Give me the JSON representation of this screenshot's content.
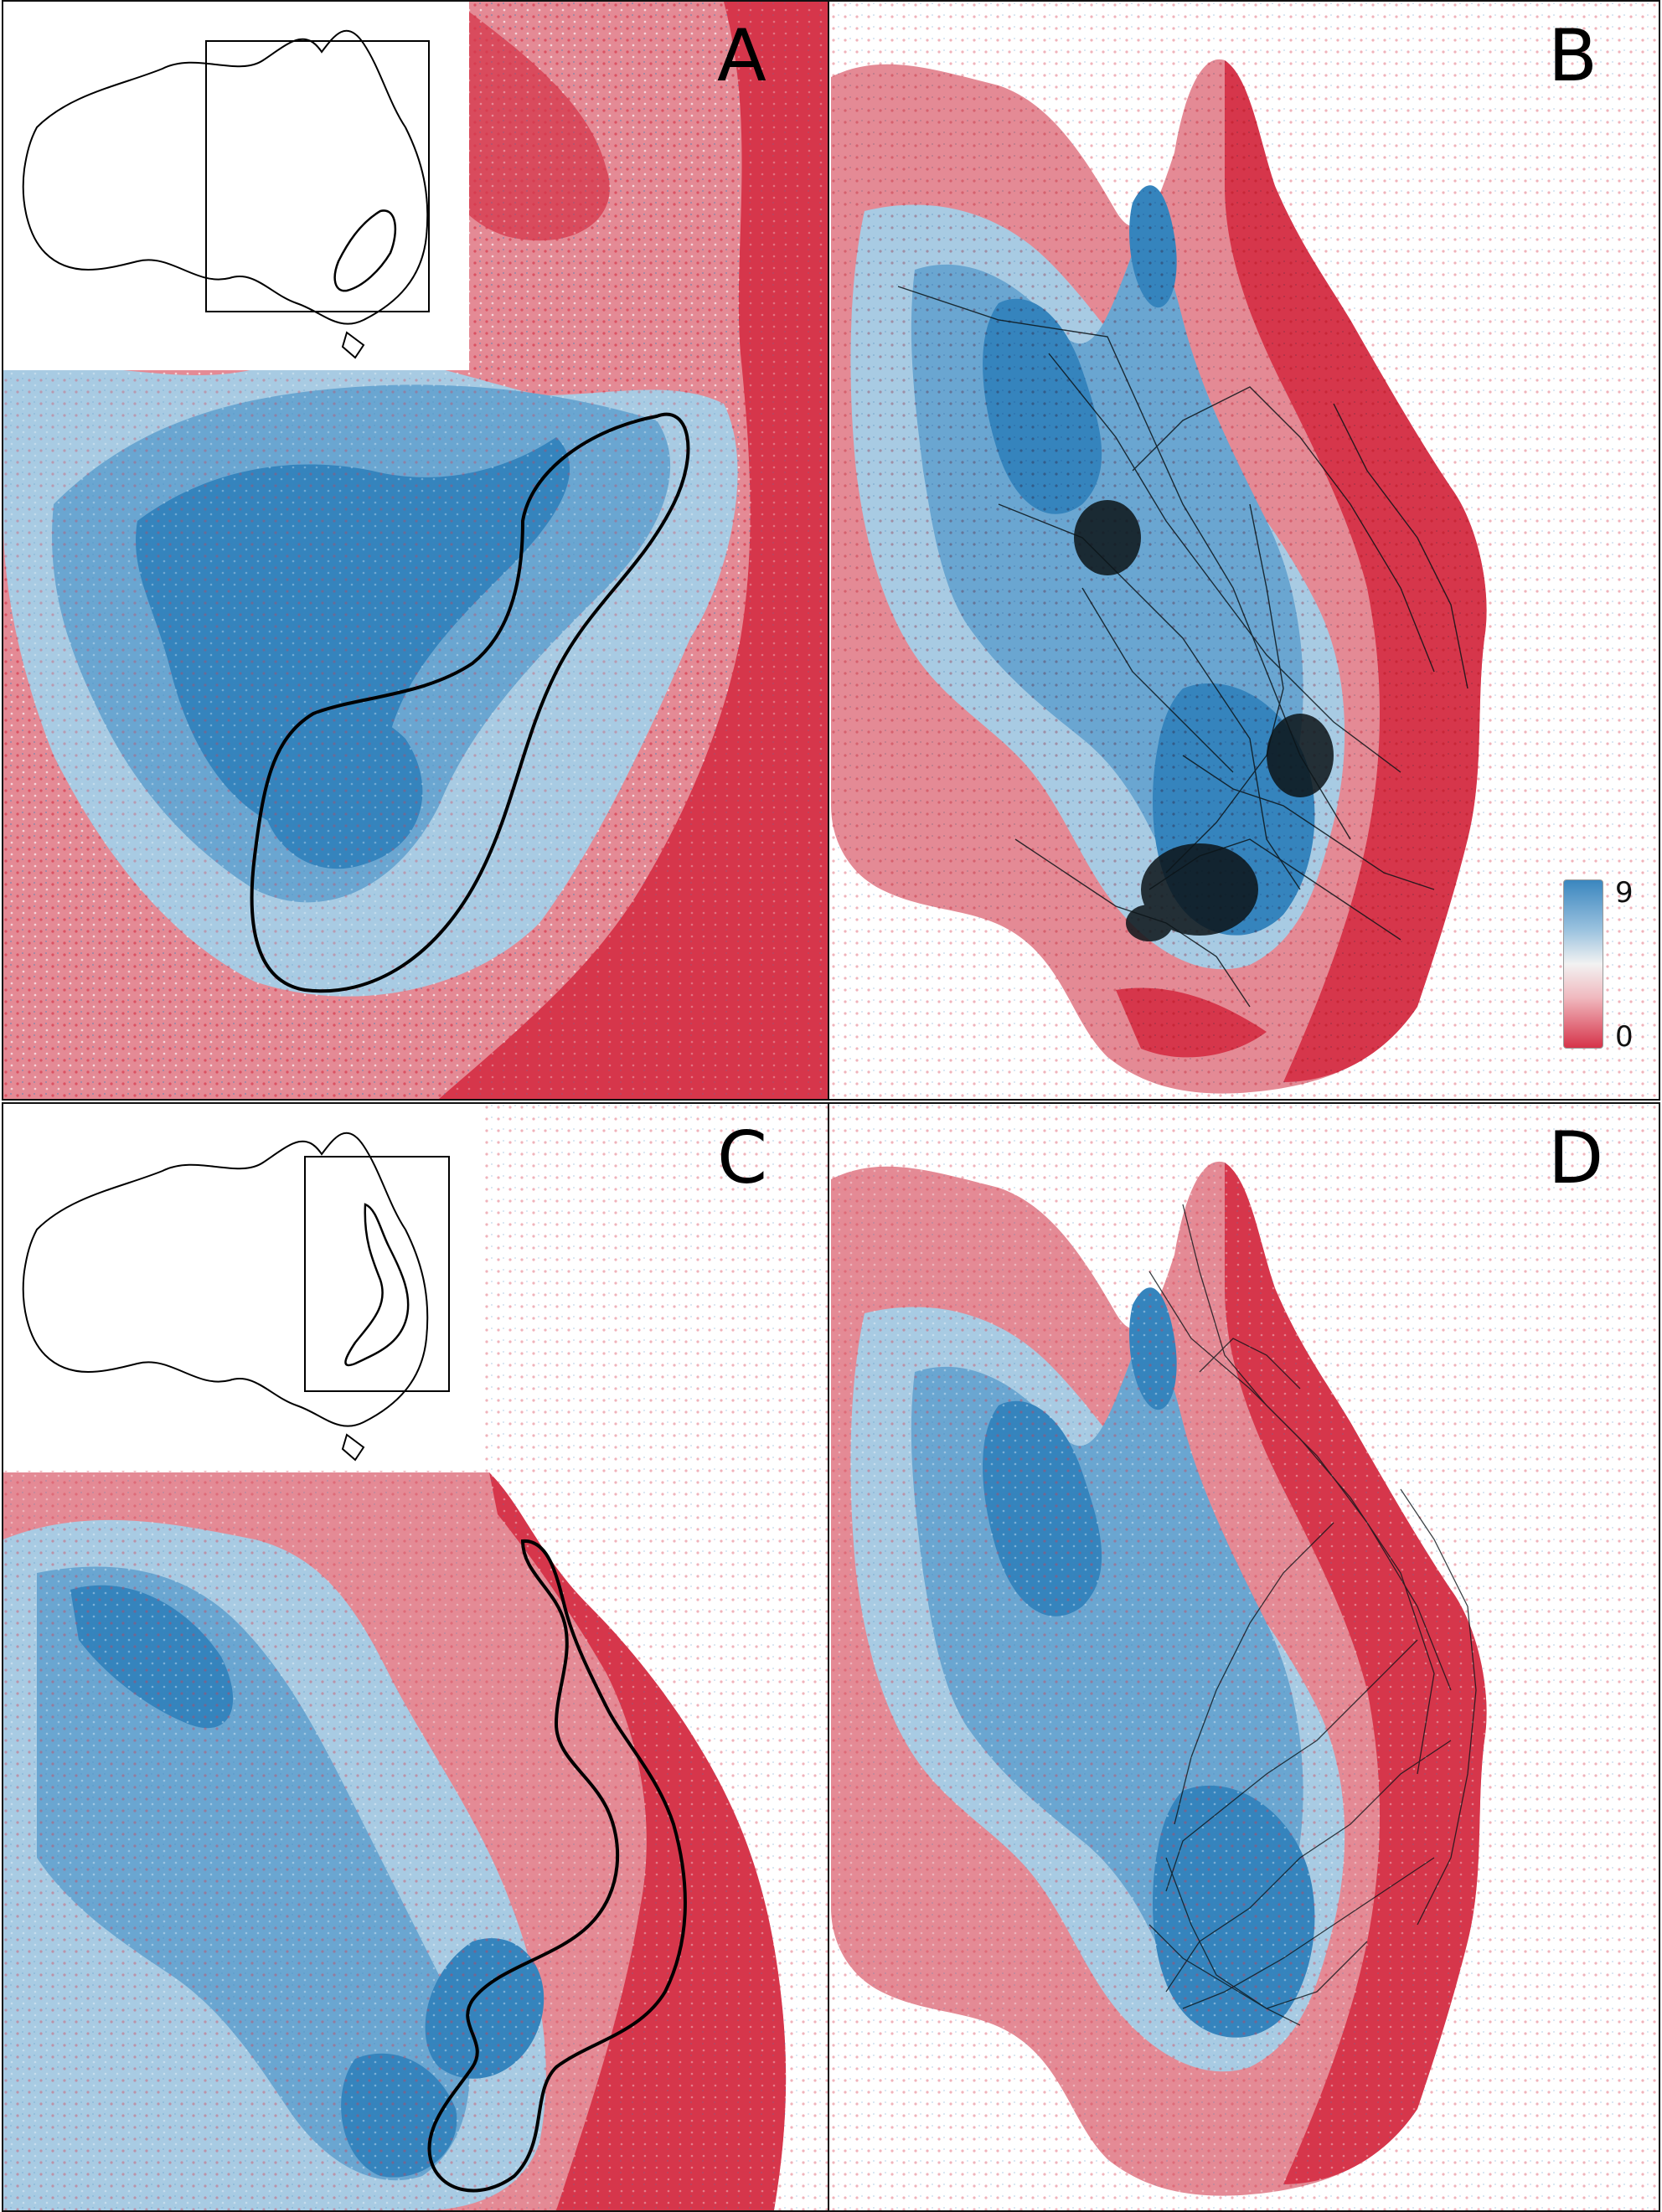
{
  "panels": [
    {
      "id": "A",
      "label": "A"
    },
    {
      "id": "B",
      "label": "B"
    },
    {
      "id": "C",
      "label": "C"
    },
    {
      "id": "D",
      "label": "D"
    }
  ],
  "legend": {
    "max_label": "9",
    "min_label": "0",
    "colors": {
      "high": "#3a86bf",
      "mid": "#f2f2f2",
      "low": "#d63349"
    }
  },
  "palette": {
    "deep_blue": "#3584bd",
    "mid_blue": "#6aa6d1",
    "light_blue": "#a8cbe3",
    "pale": "#e9dfe0",
    "pink": "#ea9aa3",
    "red": "#d6364b",
    "track": "#0c1418"
  }
}
